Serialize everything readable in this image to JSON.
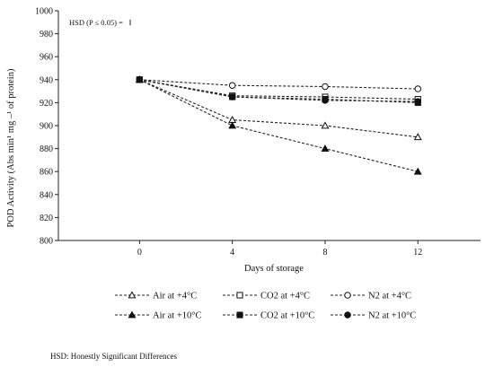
{
  "chart_data": {
    "type": "line",
    "xlabel": "Days of storage",
    "ylabel": "POD Activity (Abs min¹ mg –¹ of protein)",
    "x": [
      0,
      4,
      8,
      12
    ],
    "x_ticks": [
      "0",
      "4",
      "8",
      "12"
    ],
    "xlim": [
      -3.5,
      14.7
    ],
    "ylim": [
      800,
      1000
    ],
    "y_ticks": [
      "800",
      "820",
      "840",
      "860",
      "880",
      "900",
      "920",
      "940",
      "960",
      "980",
      "1000"
    ],
    "series": [
      {
        "name": "Air at +4°C",
        "values": [
          940,
          905,
          900,
          890
        ],
        "marker": "triangle-open"
      },
      {
        "name": "CO2 at +4°C",
        "values": [
          940,
          926,
          925,
          923
        ],
        "marker": "square-open"
      },
      {
        "name": "N2 at +4°C",
        "values": [
          940,
          935,
          934,
          932
        ],
        "marker": "circle-open"
      },
      {
        "name": "Air at +10°C",
        "values": [
          940,
          900,
          880,
          860
        ],
        "marker": "triangle-filled"
      },
      {
        "name": "CO2 at +10°C",
        "values": [
          940,
          925,
          923,
          920
        ],
        "marker": "square-filled"
      },
      {
        "name": "N2 at +10°C",
        "values": [
          940,
          925,
          922,
          921
        ],
        "marker": "circle-filled"
      }
    ],
    "hsd_label": "HSD (P ≤ 0.05) =",
    "hsd_value": 5,
    "legend_position": "bottom",
    "grid": false,
    "line_style": "dashed"
  },
  "footnote": "HSD: Honestly Significant Differences"
}
